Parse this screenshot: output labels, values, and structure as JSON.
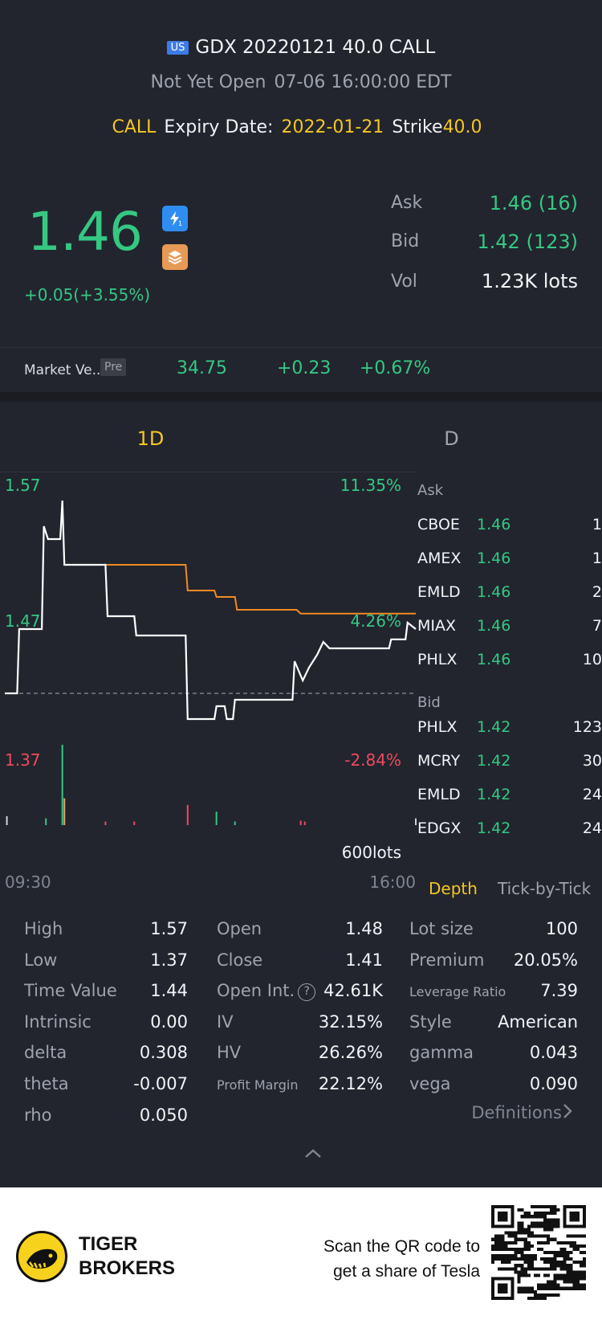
{
  "header": {
    "market_badge": "US",
    "title": "GDX 20220121 40.0 CALL",
    "status": "Not Yet Open",
    "datetime": "07-06 16:00:00 EDT",
    "type": "CALL",
    "expiry_label": "Expiry Date:",
    "expiry_value": "2022-01-21",
    "strike_label": "Strike",
    "strike_value": "40.0"
  },
  "quote": {
    "price": "1.46",
    "change": "+0.05(+3.55%)",
    "icons": [
      "lightning-level1-icon",
      "stack-layers-icon"
    ],
    "ask_label": "Ask",
    "ask_value": "1.46 (16)",
    "bid_label": "Bid",
    "bid_value": "1.42 (123)",
    "vol_label": "Vol",
    "vol_value": "1.23K lots"
  },
  "market_value": {
    "label": "Market Ve...",
    "session_badge": "Pre",
    "price": "34.75",
    "change": "+0.23",
    "change_pct": "+0.67%"
  },
  "tabs": {
    "intraday": "1D",
    "daily": "D"
  },
  "chart_data": {
    "type": "line",
    "y_labels": {
      "high": "1.57",
      "mid": "1.47",
      "low": "1.37"
    },
    "pct_labels": {
      "high": "11.35%",
      "mid": "4.26%",
      "low": "-2.84%"
    },
    "volume_label": "600lots",
    "x_labels": {
      "start": "09:30",
      "end": "16:00"
    },
    "ylim": [
      1.37,
      1.57
    ],
    "prev_close": 1.41,
    "series": [
      {
        "color": "#ffffff",
        "values": [
          1.41,
          1.41,
          1.41,
          1.41,
          1.41,
          1.41,
          1.41,
          1.41,
          1.41,
          1.41,
          1.41,
          1.41,
          1.41,
          1.41,
          1.41,
          1.41,
          1.41,
          1.41,
          1.41,
          1.41,
          1.41,
          1.41,
          1.41,
          1.41,
          1.41,
          1.41,
          1.41,
          1.41,
          1.41,
          1.41,
          1.41,
          1.41,
          1.41,
          1.41,
          1.41,
          1.41,
          1.41,
          1.41,
          1.41,
          1.41,
          1.41,
          1.41,
          1.41,
          1.41,
          1.41,
          1.41,
          1.41,
          1.41,
          1.41,
          1.41,
          1.41
        ]
      },
      {
        "color": "#f08a24",
        "values": []
      }
    ],
    "price_steps": [
      {
        "t": 0.0,
        "v": 1.41
      },
      {
        "t": 0.03,
        "v": 1.41
      },
      {
        "t": 0.035,
        "v": 1.46
      },
      {
        "t": 0.09,
        "v": 1.46
      },
      {
        "t": 0.095,
        "v": 1.54
      },
      {
        "t": 0.105,
        "v": 1.53
      },
      {
        "t": 0.135,
        "v": 1.53
      },
      {
        "t": 0.14,
        "v": 1.56
      },
      {
        "t": 0.145,
        "v": 1.51
      },
      {
        "t": 0.245,
        "v": 1.51
      },
      {
        "t": 0.25,
        "v": 1.47
      },
      {
        "t": 0.315,
        "v": 1.47
      },
      {
        "t": 0.32,
        "v": 1.455
      },
      {
        "t": 0.44,
        "v": 1.455
      },
      {
        "t": 0.445,
        "v": 1.39
      },
      {
        "t": 0.51,
        "v": 1.39
      },
      {
        "t": 0.515,
        "v": 1.4
      },
      {
        "t": 0.535,
        "v": 1.4
      },
      {
        "t": 0.54,
        "v": 1.39
      },
      {
        "t": 0.555,
        "v": 1.39
      },
      {
        "t": 0.56,
        "v": 1.405
      },
      {
        "t": 0.7,
        "v": 1.405
      },
      {
        "t": 0.705,
        "v": 1.435
      },
      {
        "t": 0.725,
        "v": 1.42
      },
      {
        "t": 0.74,
        "v": 1.43
      },
      {
        "t": 0.76,
        "v": 1.44
      },
      {
        "t": 0.775,
        "v": 1.45
      },
      {
        "t": 0.79,
        "v": 1.445
      },
      {
        "t": 0.935,
        "v": 1.445
      },
      {
        "t": 0.94,
        "v": 1.452
      },
      {
        "t": 0.975,
        "v": 1.452
      },
      {
        "t": 0.98,
        "v": 1.465
      },
      {
        "t": 1.0,
        "v": 1.46
      }
    ],
    "avg_steps": [
      {
        "t": 0.145,
        "v": 1.51
      },
      {
        "t": 0.44,
        "v": 1.51
      },
      {
        "t": 0.445,
        "v": 1.49
      },
      {
        "t": 0.51,
        "v": 1.49
      },
      {
        "t": 0.515,
        "v": 1.485
      },
      {
        "t": 0.56,
        "v": 1.485
      },
      {
        "t": 0.565,
        "v": 1.475
      },
      {
        "t": 0.71,
        "v": 1.475
      },
      {
        "t": 0.72,
        "v": 1.472
      },
      {
        "t": 1.0,
        "v": 1.472
      }
    ],
    "volume_bars": [
      {
        "t": 0.005,
        "v": 20,
        "c": "#cfd2d8"
      },
      {
        "t": 0.1,
        "v": 15,
        "c": "#35c882"
      },
      {
        "t": 0.14,
        "v": 180,
        "c": "#35c882"
      },
      {
        "t": 0.145,
        "v": 60,
        "c": "#e0a86a"
      },
      {
        "t": 0.245,
        "v": 8,
        "c": "#ef4a5c"
      },
      {
        "t": 0.315,
        "v": 8,
        "c": "#ef4a5c"
      },
      {
        "t": 0.445,
        "v": 45,
        "c": "#ef4a5c"
      },
      {
        "t": 0.515,
        "v": 30,
        "c": "#35c882"
      },
      {
        "t": 0.56,
        "v": 8,
        "c": "#35c882"
      },
      {
        "t": 0.72,
        "v": 10,
        "c": "#ef4a5c"
      },
      {
        "t": 0.73,
        "v": 8,
        "c": "#ef4a5c"
      },
      {
        "t": 1.0,
        "v": 15,
        "c": "#cfd2d8"
      }
    ]
  },
  "depth": {
    "ask_header": "Ask",
    "asks": [
      {
        "ex": "CBOE",
        "px": "1.46",
        "sz": "1"
      },
      {
        "ex": "AMEX",
        "px": "1.46",
        "sz": "1"
      },
      {
        "ex": "EMLD",
        "px": "1.46",
        "sz": "2"
      },
      {
        "ex": "MIAX",
        "px": "1.46",
        "sz": "7"
      },
      {
        "ex": "PHLX",
        "px": "1.46",
        "sz": "10"
      }
    ],
    "bid_header": "Bid",
    "bids": [
      {
        "ex": "PHLX",
        "px": "1.42",
        "sz": "123"
      },
      {
        "ex": "MCRY",
        "px": "1.42",
        "sz": "30"
      },
      {
        "ex": "EMLD",
        "px": "1.42",
        "sz": "24"
      },
      {
        "ex": "EDGX",
        "px": "1.42",
        "sz": "24"
      }
    ],
    "depth_tab": "Depth",
    "tick_tab": "Tick-by-Tick"
  },
  "stats": {
    "col1": [
      {
        "label": "High",
        "value": "1.57"
      },
      {
        "label": "Low",
        "value": "1.37"
      },
      {
        "label": "Time Value",
        "value": "1.44"
      },
      {
        "label": "Intrinsic",
        "value": "0.00"
      },
      {
        "label": "delta",
        "value": "0.308"
      },
      {
        "label": "theta",
        "value": "-0.007"
      },
      {
        "label": "rho",
        "value": "0.050"
      }
    ],
    "col2": [
      {
        "label": "Open",
        "value": "1.48"
      },
      {
        "label": "Close",
        "value": "1.41"
      },
      {
        "label": "Open Int.",
        "value": "42.61K"
      },
      {
        "label": "IV",
        "value": "32.15%"
      },
      {
        "label": "HV",
        "value": "26.26%"
      },
      {
        "label": "Profit Margin",
        "value": "22.12%"
      }
    ],
    "col3": [
      {
        "label": "Lot size",
        "value": "100"
      },
      {
        "label": "Premium",
        "value": "20.05%"
      },
      {
        "label": "Leverage Ratio",
        "value": "7.39"
      },
      {
        "label": "Style",
        "value": "American"
      },
      {
        "label": "gamma",
        "value": "0.043"
      },
      {
        "label": "vega",
        "value": "0.090"
      }
    ],
    "definitions": "Definitions",
    "help_glyph": "?"
  },
  "footer": {
    "brand_line1": "TIGER",
    "brand_line2": "BROKERS",
    "scan_line1": "Scan the QR code to",
    "scan_line2": "get a share of Tesla"
  }
}
